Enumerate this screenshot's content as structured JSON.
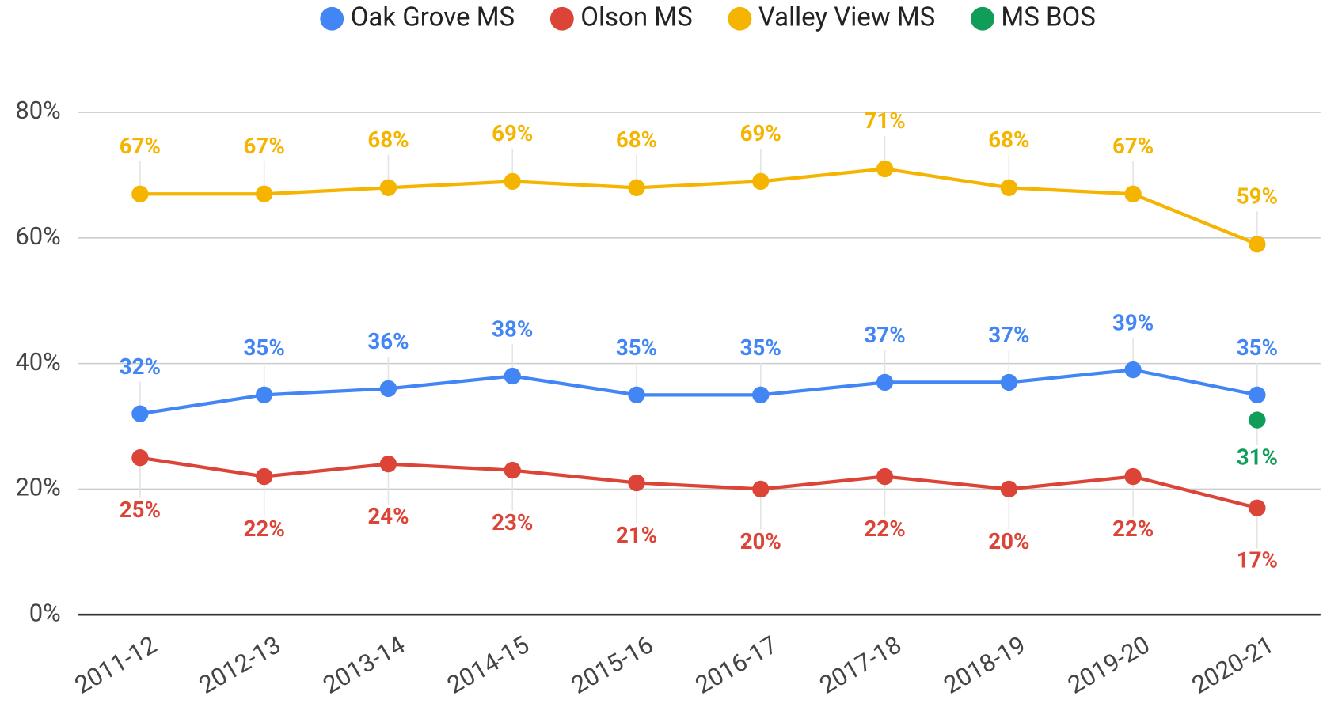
{
  "chart_data": {
    "type": "line",
    "categories": [
      "2011-12",
      "2012-13",
      "2013-14",
      "2014-15",
      "2015-16",
      "2016-17",
      "2017-18",
      "2018-19",
      "2019-20",
      "2020-21"
    ],
    "series": [
      {
        "name": "Oak Grove MS",
        "color": "#4285f4",
        "values": [
          32,
          35,
          36,
          38,
          35,
          35,
          37,
          37,
          39,
          35
        ],
        "value_labels": [
          "32%",
          "35%",
          "36%",
          "38%",
          "35%",
          "35%",
          "37%",
          "37%",
          "39%",
          "35%"
        ]
      },
      {
        "name": "Olson MS",
        "color": "#db4437",
        "values": [
          25,
          22,
          24,
          23,
          21,
          20,
          22,
          20,
          22,
          17
        ],
        "value_labels": [
          "25%",
          "22%",
          "24%",
          "23%",
          "21%",
          "20%",
          "22%",
          "20%",
          "22%",
          "17%"
        ]
      },
      {
        "name": "Valley View MS",
        "color": "#f4b400",
        "values": [
          67,
          67,
          68,
          69,
          68,
          69,
          71,
          68,
          67,
          59
        ],
        "value_labels": [
          "67%",
          "67%",
          "68%",
          "69%",
          "68%",
          "69%",
          "71%",
          "68%",
          "67%",
          "59%"
        ]
      },
      {
        "name": "MS BOS",
        "color": "#0f9d58",
        "values": [
          null,
          null,
          null,
          null,
          null,
          null,
          null,
          null,
          null,
          31
        ],
        "value_labels": [
          null,
          null,
          null,
          null,
          null,
          null,
          null,
          null,
          null,
          "31%"
        ]
      }
    ],
    "ylim": [
      0,
      80
    ],
    "yticks": [
      {
        "value": 0,
        "label": "0%"
      },
      {
        "value": 20,
        "label": "20%"
      },
      {
        "value": 40,
        "label": "40%"
      },
      {
        "value": 60,
        "label": "60%"
      },
      {
        "value": 80,
        "label": "80%"
      }
    ],
    "grid": true,
    "legend": "top"
  }
}
